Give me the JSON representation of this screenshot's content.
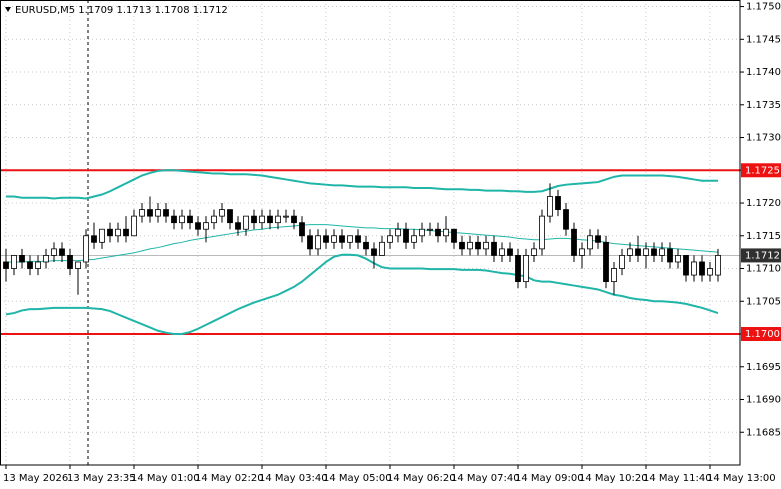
{
  "chart_data": {
    "type": "candlestick",
    "title": "EURUSD,M5 1.1709 1.1713 1.1708 1.1712",
    "categories": [
      "13 May 2026",
      null,
      null,
      null,
      null,
      null,
      null,
      null,
      "13 May 23:35",
      null,
      null,
      null,
      null,
      null,
      null,
      null,
      "14 May 01:00",
      null,
      null,
      null,
      null,
      null,
      null,
      null,
      "14 May 02:20",
      null,
      null,
      null,
      null,
      null,
      null,
      null,
      "14 May 03:40",
      null,
      null,
      null,
      null,
      null,
      null,
      null,
      "14 May 05:00",
      null,
      null,
      null,
      null,
      null,
      null,
      null,
      "14 May 06:20",
      null,
      null,
      null,
      null,
      null,
      null,
      null,
      "14 May 07:40",
      null,
      null,
      null,
      null,
      null,
      null,
      null,
      "14 May 09:00",
      null,
      null,
      null,
      null,
      null,
      null,
      null,
      "14 May 10:20",
      null,
      null,
      null,
      null,
      null,
      null,
      null,
      "14 May 11:40",
      null,
      null,
      null,
      null,
      null,
      null,
      null,
      "14 May 13:00",
      null
    ],
    "ohlc": [
      [
        1.1711,
        1.1713,
        1.1708,
        1.171
      ],
      [
        1.171,
        1.1712,
        1.1709,
        1.1712
      ],
      [
        1.1712,
        1.1713,
        1.171,
        1.1711
      ],
      [
        1.1711,
        1.1712,
        1.1709,
        1.171
      ],
      [
        1.171,
        1.1712,
        1.1709,
        1.1711
      ],
      [
        1.1711,
        1.1713,
        1.171,
        1.1712
      ],
      [
        1.1712,
        1.1714,
        1.1711,
        1.1713
      ],
      [
        1.1713,
        1.1714,
        1.1711,
        1.1712
      ],
      [
        1.1712,
        1.1713,
        1.1709,
        1.171
      ],
      [
        1.171,
        1.1711,
        1.1706,
        1.1711
      ],
      [
        1.1711,
        1.1716,
        1.171,
        1.1715
      ],
      [
        1.1715,
        1.1717,
        1.1713,
        1.1714
      ],
      [
        1.1714,
        1.1716,
        1.1713,
        1.1716
      ],
      [
        1.1716,
        1.1717,
        1.1714,
        1.1715
      ],
      [
        1.1715,
        1.1717,
        1.1714,
        1.1716
      ],
      [
        1.1716,
        1.1718,
        1.1714,
        1.1715
      ],
      [
        1.1715,
        1.1719,
        1.1715,
        1.1718
      ],
      [
        1.1718,
        1.172,
        1.1717,
        1.1719
      ],
      [
        1.1719,
        1.1721,
        1.1717,
        1.1718
      ],
      [
        1.1718,
        1.172,
        1.1717,
        1.1719
      ],
      [
        1.1719,
        1.172,
        1.1717,
        1.1718
      ],
      [
        1.1718,
        1.1719,
        1.1716,
        1.1717
      ],
      [
        1.1717,
        1.1719,
        1.1716,
        1.1718
      ],
      [
        1.1718,
        1.1719,
        1.1716,
        1.1717
      ],
      [
        1.1717,
        1.1718,
        1.1715,
        1.1716
      ],
      [
        1.1716,
        1.1718,
        1.1714,
        1.1717
      ],
      [
        1.1717,
        1.1719,
        1.1716,
        1.1718
      ],
      [
        1.1718,
        1.172,
        1.1717,
        1.1719
      ],
      [
        1.1719,
        1.1719,
        1.1716,
        1.1717
      ],
      [
        1.1717,
        1.1718,
        1.1715,
        1.1716
      ],
      [
        1.1716,
        1.1718,
        1.1715,
        1.1718
      ],
      [
        1.1718,
        1.1719,
        1.1716,
        1.1717
      ],
      [
        1.1717,
        1.1719,
        1.1716,
        1.1718
      ],
      [
        1.1718,
        1.1719,
        1.1716,
        1.1717
      ],
      [
        1.1717,
        1.1719,
        1.1716,
        1.1718
      ],
      [
        1.1718,
        1.1719,
        1.1717,
        1.1718
      ],
      [
        1.1718,
        1.1719,
        1.1716,
        1.1717
      ],
      [
        1.1717,
        1.1718,
        1.1714,
        1.1715
      ],
      [
        1.1715,
        1.1716,
        1.1712,
        1.1713
      ],
      [
        1.1713,
        1.1716,
        1.1712,
        1.1715
      ],
      [
        1.1715,
        1.1716,
        1.1713,
        1.1714
      ],
      [
        1.1714,
        1.1716,
        1.1713,
        1.1715
      ],
      [
        1.1715,
        1.1716,
        1.1713,
        1.1714
      ],
      [
        1.1714,
        1.1715,
        1.1713,
        1.1715
      ],
      [
        1.1715,
        1.1716,
        1.1713,
        1.1714
      ],
      [
        1.1714,
        1.1715,
        1.1712,
        1.1713
      ],
      [
        1.1713,
        1.1714,
        1.171,
        1.1712
      ],
      [
        1.1712,
        1.1715,
        1.1712,
        1.1714
      ],
      [
        1.1714,
        1.1716,
        1.1713,
        1.1715
      ],
      [
        1.1715,
        1.1717,
        1.1714,
        1.1716
      ],
      [
        1.1716,
        1.1717,
        1.1713,
        1.1714
      ],
      [
        1.1714,
        1.1716,
        1.1713,
        1.1715
      ],
      [
        1.1715,
        1.1717,
        1.1714,
        1.1716
      ],
      [
        1.1716,
        1.1717,
        1.1715,
        1.1716
      ],
      [
        1.1716,
        1.1717,
        1.1714,
        1.1715
      ],
      [
        1.1715,
        1.1718,
        1.1714,
        1.1716
      ],
      [
        1.1716,
        1.1716,
        1.1713,
        1.1714
      ],
      [
        1.1714,
        1.1715,
        1.1712,
        1.1713
      ],
      [
        1.1713,
        1.1715,
        1.1712,
        1.1714
      ],
      [
        1.1714,
        1.1715,
        1.1712,
        1.1713
      ],
      [
        1.1713,
        1.1715,
        1.1712,
        1.1714
      ],
      [
        1.1714,
        1.1715,
        1.1711,
        1.1712
      ],
      [
        1.1712,
        1.1714,
        1.1711,
        1.1713
      ],
      [
        1.1713,
        1.1714,
        1.1711,
        1.1712
      ],
      [
        1.1712,
        1.1713,
        1.1707,
        1.1708
      ],
      [
        1.1708,
        1.1713,
        1.1707,
        1.1712
      ],
      [
        1.1712,
        1.1714,
        1.1711,
        1.1713
      ],
      [
        1.1713,
        1.1719,
        1.1712,
        1.1718
      ],
      [
        1.1718,
        1.1723,
        1.1717,
        1.1721
      ],
      [
        1.1721,
        1.1722,
        1.1718,
        1.1719
      ],
      [
        1.1719,
        1.172,
        1.1715,
        1.1716
      ],
      [
        1.1716,
        1.1717,
        1.1711,
        1.1712
      ],
      [
        1.1712,
        1.1714,
        1.171,
        1.1713
      ],
      [
        1.1713,
        1.1716,
        1.1712,
        1.1715
      ],
      [
        1.1715,
        1.1716,
        1.1713,
        1.1714
      ],
      [
        1.1714,
        1.1715,
        1.1707,
        1.1708
      ],
      [
        1.1708,
        1.1711,
        1.1706,
        1.171
      ],
      [
        1.171,
        1.1713,
        1.1709,
        1.1712
      ],
      [
        1.1712,
        1.1714,
        1.1711,
        1.1713
      ],
      [
        1.1713,
        1.1715,
        1.1711,
        1.1712
      ],
      [
        1.1712,
        1.1714,
        1.171,
        1.1713
      ],
      [
        1.1713,
        1.1714,
        1.1711,
        1.1712
      ],
      [
        1.1712,
        1.1714,
        1.1711,
        1.1713
      ],
      [
        1.1713,
        1.1714,
        1.171,
        1.1711
      ],
      [
        1.1711,
        1.1713,
        1.171,
        1.1712
      ],
      [
        1.1712,
        1.1712,
        1.1708,
        1.1709
      ],
      [
        1.1709,
        1.1712,
        1.1708,
        1.1711
      ],
      [
        1.1711,
        1.1712,
        1.1708,
        1.1709
      ],
      [
        1.1709,
        1.1711,
        1.1708,
        1.171
      ],
      [
        1.1709,
        1.1713,
        1.1708,
        1.1712
      ]
    ],
    "candle_color": "#000000",
    "bands": {
      "color": "#1fb5a8",
      "upper": [
        1.1721,
        1.1721,
        1.17208,
        1.17208,
        1.17208,
        1.17208,
        1.17207,
        1.17208,
        1.17208,
        1.17208,
        1.17207,
        1.1721,
        1.17213,
        1.17218,
        1.17224,
        1.1723,
        1.17236,
        1.17242,
        1.17246,
        1.17249,
        1.1725,
        1.1725,
        1.17249,
        1.17248,
        1.17247,
        1.17246,
        1.17245,
        1.17245,
        1.17244,
        1.17244,
        1.17244,
        1.17243,
        1.17242,
        1.1724,
        1.17238,
        1.17236,
        1.17234,
        1.17232,
        1.1723,
        1.17229,
        1.17228,
        1.17227,
        1.17227,
        1.17226,
        1.17225,
        1.17225,
        1.17225,
        1.17224,
        1.17224,
        1.17224,
        1.17224,
        1.17223,
        1.17223,
        1.17223,
        1.17222,
        1.17221,
        1.17221,
        1.17221,
        1.1722,
        1.1722,
        1.17219,
        1.17219,
        1.17219,
        1.17218,
        1.17218,
        1.17217,
        1.17217,
        1.17218,
        1.17222,
        1.17226,
        1.17228,
        1.17229,
        1.1723,
        1.17231,
        1.17232,
        1.17236,
        1.1724,
        1.17242,
        1.17242,
        1.17242,
        1.17242,
        1.17242,
        1.17242,
        1.17241,
        1.1724,
        1.17238,
        1.17236,
        1.17234,
        1.17234,
        1.17234
      ],
      "middle": [
        1.1711,
        1.1711,
        1.1711,
        1.17111,
        1.17111,
        1.17111,
        1.17112,
        1.17112,
        1.17112,
        1.17112,
        1.17113,
        1.17114,
        1.17116,
        1.17118,
        1.1712,
        1.17122,
        1.17124,
        1.17127,
        1.1713,
        1.17132,
        1.17135,
        1.17138,
        1.1714,
        1.17143,
        1.17145,
        1.17147,
        1.17149,
        1.17151,
        1.17153,
        1.17155,
        1.17157,
        1.17159,
        1.1716,
        1.17162,
        1.17163,
        1.17164,
        1.17165,
        1.17166,
        1.17167,
        1.17167,
        1.17167,
        1.17166,
        1.17165,
        1.17164,
        1.17163,
        1.17162,
        1.17162,
        1.17161,
        1.17161,
        1.17161,
        1.1716,
        1.1716,
        1.17159,
        1.17158,
        1.17157,
        1.17156,
        1.17155,
        1.17154,
        1.17153,
        1.17152,
        1.17151,
        1.1715,
        1.17149,
        1.17148,
        1.17146,
        1.17145,
        1.17144,
        1.17144,
        1.17145,
        1.17146,
        1.17146,
        1.17145,
        1.17144,
        1.17143,
        1.17142,
        1.1714,
        1.17138,
        1.17137,
        1.17136,
        1.17135,
        1.17134,
        1.17133,
        1.17132,
        1.17131,
        1.1713,
        1.17129,
        1.17128,
        1.17127,
        1.17126,
        1.17125
      ],
      "lower": [
        1.1703,
        1.17032,
        1.17036,
        1.17038,
        1.17038,
        1.17039,
        1.1704,
        1.1704,
        1.1704,
        1.1704,
        1.1704,
        1.17039,
        1.17038,
        1.17035,
        1.1703,
        1.17025,
        1.1702,
        1.17015,
        1.1701,
        1.17005,
        1.17002,
        1.17,
        1.17,
        1.17003,
        1.17008,
        1.17014,
        1.1702,
        1.17026,
        1.17032,
        1.17038,
        1.17043,
        1.17048,
        1.17052,
        1.17056,
        1.1706,
        1.17066,
        1.17072,
        1.1708,
        1.1709,
        1.171,
        1.1711,
        1.17118,
        1.17121,
        1.17121,
        1.1712,
        1.17115,
        1.17108,
        1.17102,
        1.171,
        1.171,
        1.171,
        1.171,
        1.171,
        1.17099,
        1.17099,
        1.17099,
        1.17099,
        1.17098,
        1.17098,
        1.17098,
        1.17097,
        1.17095,
        1.17093,
        1.17092,
        1.1709,
        1.17088,
        1.17082,
        1.1708,
        1.1708,
        1.17078,
        1.17076,
        1.17074,
        1.17072,
        1.1707,
        1.17068,
        1.17064,
        1.1706,
        1.17058,
        1.17055,
        1.17053,
        1.17052,
        1.1705,
        1.1705,
        1.17049,
        1.17048,
        1.17046,
        1.17043,
        1.1704,
        1.17036,
        1.17032
      ]
    },
    "ylim": [
      1.168,
      1.1751
    ],
    "yticks": [
      {
        "value": 1.175,
        "label": "1.1750"
      },
      1.1745,
      {
        "value": 1.174,
        "label": "1.1740"
      },
      1.1735,
      {
        "value": 1.173,
        "label": "1.1730"
      },
      1.1725,
      {
        "value": 1.172,
        "label": "1.1720"
      },
      1.1715,
      {
        "value": 1.171,
        "label": "1.1710"
      },
      1.1705,
      {
        "value": 1.17,
        "label": "1.1700"
      },
      1.1695,
      {
        "value": 1.169,
        "label": "1.1690"
      },
      1.1685
    ],
    "levels": [
      {
        "value": 1.1725,
        "label": "1.1725"
      },
      {
        "value": 1.17,
        "label": "1.1700"
      }
    ],
    "level_color": "#ee1111",
    "last_price": {
      "value": 1.1712,
      "label": "1.1712"
    },
    "grid": true
  }
}
